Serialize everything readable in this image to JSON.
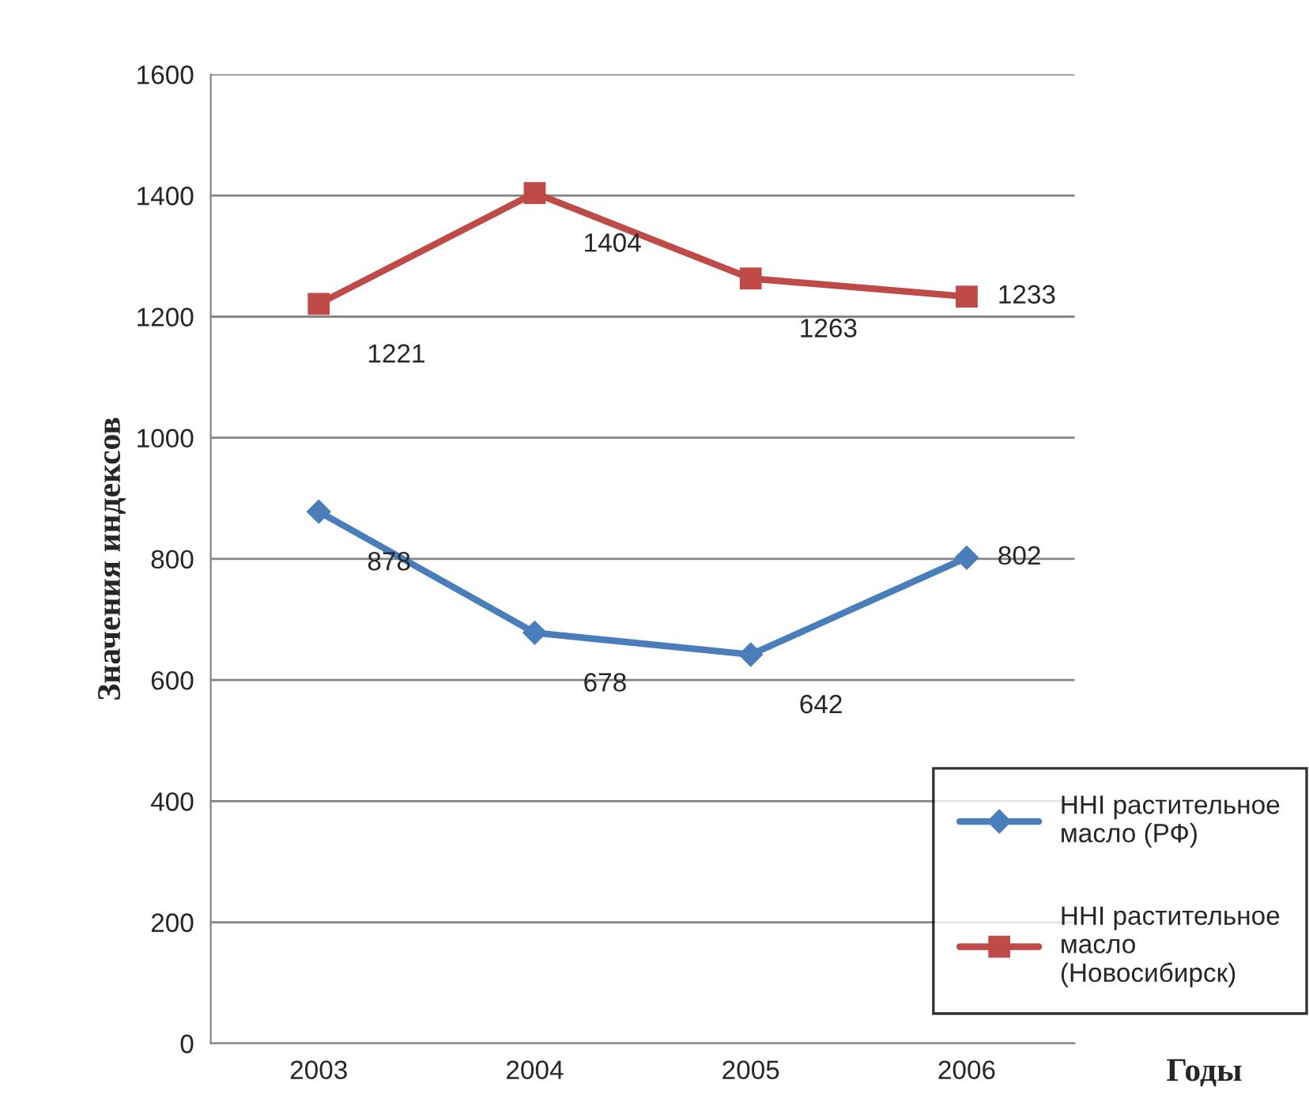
{
  "chart_data": {
    "type": "line",
    "ylabel": "Значения индексов",
    "xlabel": "Годы",
    "categories": [
      "2003",
      "2004",
      "2005",
      "2006"
    ],
    "series": [
      {
        "name": "HHI растительное\nмасло (РФ)",
        "color": "#4a7ebb",
        "marker": "diamond",
        "values": [
          878,
          678,
          642,
          802
        ]
      },
      {
        "name": "HHI растительное\nмасло\n(Новосибирск)",
        "color": "#be4b48",
        "marker": "square",
        "values": [
          1221,
          1404,
          1263,
          1233
        ]
      }
    ],
    "ylim": [
      0,
      1600
    ],
    "yticks": [
      0,
      200,
      400,
      600,
      800,
      1000,
      1200,
      1400,
      1600
    ],
    "grid": "y",
    "legend": "bottom right",
    "data_labels": true
  }
}
